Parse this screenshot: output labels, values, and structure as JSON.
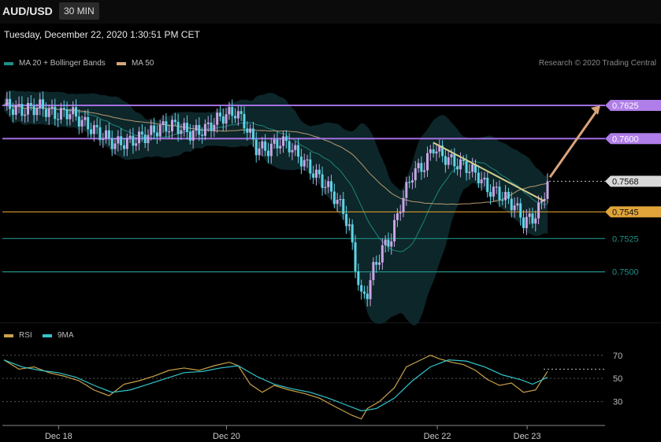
{
  "header": {
    "symbol": "AUD/USD",
    "timeframe": "30 MIN",
    "datetime": "Tuesday, December 22, 2020 1:30:51 PM CET",
    "credit": "Research © 2020 Trading Central"
  },
  "legend_main": [
    {
      "label": "MA 20 + Bollinger Bands",
      "color": "#1f8f86"
    },
    {
      "label": "MA 50",
      "color": "#d6a77a"
    }
  ],
  "legend_rsi": [
    {
      "label": "RSI",
      "color": "#c9a24a"
    },
    {
      "label": "9MA",
      "color": "#33c5cc"
    }
  ],
  "colors": {
    "bull": "#c9a6e6",
    "bear": "#5ed3e6",
    "resistance": "#a36ee0",
    "support": "#1f8f86",
    "pivot": "#d4992b",
    "arrow": "#d9a37a",
    "trendline": "#d6cf8f",
    "band_fill": "#0e2a2e"
  },
  "chart_data": [
    {
      "type": "candlestick",
      "title": "AUD/USD",
      "x_ticks": [
        "Dec 18",
        "Dec 20",
        "Dec 22",
        "Dec 23"
      ],
      "ylim": [
        0.7462,
        0.7648
      ],
      "levels": [
        {
          "value": 0.7625,
          "label": "0.7625",
          "kind": "resistance"
        },
        {
          "value": 0.76,
          "label": "0.7600",
          "kind": "resistance"
        },
        {
          "value": 0.7568,
          "label": "0.7568",
          "kind": "current"
        },
        {
          "value": 0.7545,
          "label": "0.7545",
          "kind": "pivot"
        },
        {
          "value": 0.7525,
          "label": "0.7525",
          "kind": "support"
        },
        {
          "value": 0.75,
          "label": "0.7500",
          "kind": "support"
        }
      ],
      "target": 0.7625,
      "path": [
        [
          0,
          0.7625
        ],
        [
          6,
          0.7621
        ],
        [
          12,
          0.7624
        ],
        [
          17,
          0.7618
        ],
        [
          22,
          0.762
        ],
        [
          27,
          0.7611
        ],
        [
          31,
          0.7605
        ],
        [
          34,
          0.7601
        ],
        [
          37,
          0.7596
        ],
        [
          42,
          0.7598
        ],
        [
          47,
          0.7602
        ],
        [
          52,
          0.7608
        ],
        [
          57,
          0.761
        ],
        [
          62,
          0.7604
        ],
        [
          67,
          0.7607
        ],
        [
          72,
          0.7616
        ],
        [
          77,
          0.762
        ],
        [
          80,
          0.7612
        ],
        [
          84,
          0.7593
        ],
        [
          88,
          0.7592
        ],
        [
          92,
          0.7598
        ],
        [
          95,
          0.7595
        ],
        [
          98,
          0.7587
        ],
        [
          102,
          0.7577
        ],
        [
          106,
          0.7568
        ],
        [
          109,
          0.756
        ],
        [
          113,
          0.7546
        ],
        [
          115,
          0.7532
        ],
        [
          117,
          0.7505
        ],
        [
          119,
          0.748
        ],
        [
          121,
          0.7485
        ],
        [
          123,
          0.7502
        ],
        [
          126,
          0.7517
        ],
        [
          129,
          0.7526
        ],
        [
          132,
          0.755
        ],
        [
          136,
          0.7574
        ],
        [
          140,
          0.758
        ],
        [
          143,
          0.7594
        ],
        [
          146,
          0.7587
        ],
        [
          150,
          0.7582
        ],
        [
          154,
          0.7579
        ],
        [
          158,
          0.7572
        ],
        [
          161,
          0.7562
        ],
        [
          164,
          0.756
        ],
        [
          167,
          0.7555
        ],
        [
          170,
          0.755
        ],
        [
          173,
          0.7538
        ],
        [
          176,
          0.754
        ],
        [
          179,
          0.7551
        ],
        [
          181,
          0.7569
        ]
      ]
    },
    {
      "type": "line",
      "title": "RSI",
      "y_ticks": [
        70,
        50,
        30
      ],
      "ylim": [
        10,
        78
      ],
      "series": [
        {
          "name": "RSI",
          "values": [
            [
              0,
              66
            ],
            [
              5,
              58
            ],
            [
              10,
              60
            ],
            [
              15,
              55
            ],
            [
              20,
              52
            ],
            [
              25,
              48
            ],
            [
              30,
              40
            ],
            [
              35,
              35
            ],
            [
              40,
              45
            ],
            [
              45,
              48
            ],
            [
              50,
              52
            ],
            [
              55,
              57
            ],
            [
              60,
              59
            ],
            [
              65,
              57
            ],
            [
              70,
              61
            ],
            [
              75,
              64
            ],
            [
              78,
              61
            ],
            [
              82,
              45
            ],
            [
              86,
              38
            ],
            [
              90,
              44
            ],
            [
              95,
              40
            ],
            [
              100,
              37
            ],
            [
              105,
              33
            ],
            [
              110,
              26
            ],
            [
              113,
              22
            ],
            [
              116,
              18
            ],
            [
              119,
              15
            ],
            [
              121,
              24
            ],
            [
              125,
              30
            ],
            [
              130,
              42
            ],
            [
              134,
              60
            ],
            [
              138,
              65
            ],
            [
              142,
              70
            ],
            [
              145,
              67
            ],
            [
              149,
              64
            ],
            [
              153,
              62
            ],
            [
              157,
              57
            ],
            [
              161,
              49
            ],
            [
              165,
              44
            ],
            [
              169,
              46
            ],
            [
              173,
              38
            ],
            [
              177,
              40
            ],
            [
              181,
              56
            ]
          ]
        },
        {
          "name": "9MA",
          "values": [
            [
              0,
              66
            ],
            [
              6,
              60
            ],
            [
              12,
              57
            ],
            [
              18,
              55
            ],
            [
              24,
              51
            ],
            [
              30,
              44
            ],
            [
              36,
              38
            ],
            [
              42,
              40
            ],
            [
              48,
              45
            ],
            [
              54,
              50
            ],
            [
              60,
              55
            ],
            [
              66,
              56
            ],
            [
              72,
              59
            ],
            [
              78,
              61
            ],
            [
              84,
              52
            ],
            [
              90,
              45
            ],
            [
              96,
              41
            ],
            [
              102,
              38
            ],
            [
              108,
              33
            ],
            [
              114,
              27
            ],
            [
              119,
              22
            ],
            [
              124,
              24
            ],
            [
              130,
              33
            ],
            [
              136,
              48
            ],
            [
              142,
              60
            ],
            [
              148,
              66
            ],
            [
              154,
              65
            ],
            [
              160,
              60
            ],
            [
              166,
              53
            ],
            [
              172,
              49
            ],
            [
              176,
              45
            ],
            [
              181,
              51
            ]
          ]
        }
      ]
    }
  ]
}
